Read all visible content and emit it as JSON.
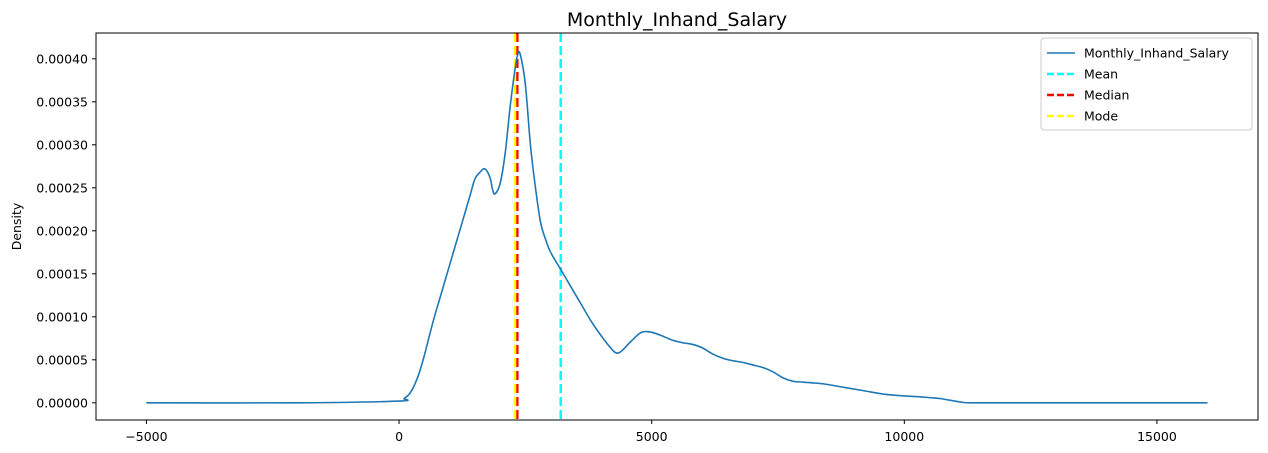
{
  "chart_data": {
    "type": "line",
    "title": "Monthly_Inhand_Salary",
    "xlabel": "",
    "ylabel": "Density",
    "xlim": [
      -5998,
      17000
    ],
    "ylim": [
      -2e-05,
      0.00043
    ],
    "x_ticks": [
      -5000,
      0,
      5000,
      10000,
      15000
    ],
    "x_tick_labels": [
      "−5000",
      "0",
      "5000",
      "10000",
      "15000"
    ],
    "y_ticks": [
      0,
      5e-05,
      0.0001,
      0.00015,
      0.0002,
      0.00025,
      0.0003,
      0.00035,
      0.0004
    ],
    "y_tick_labels": [
      "0.00000",
      "0.00005",
      "0.00010",
      "0.00015",
      "0.00020",
      "0.00025",
      "0.00030",
      "0.00035",
      "0.00040"
    ],
    "grid": false,
    "legend_position": "top-right",
    "series": [
      {
        "name": "Monthly_Inhand_Salary",
        "color": "#1f77b4",
        "x": [
          -5000,
          -2000,
          0,
          100,
          200,
          300,
          400,
          500,
          600,
          700,
          800,
          900,
          1000,
          1100,
          1200,
          1300,
          1400,
          1500,
          1600,
          1700,
          1800,
          1850,
          1900,
          2000,
          2100,
          2200,
          2300,
          2350,
          2400,
          2500,
          2600,
          2700,
          2800,
          2900,
          3000,
          3200,
          3400,
          3600,
          3800,
          4000,
          4200,
          4300,
          4400,
          4600,
          4800,
          5000,
          5200,
          5400,
          5600,
          5800,
          6000,
          6200,
          6400,
          6600,
          6800,
          7000,
          7200,
          7400,
          7600,
          7800,
          8000,
          8400,
          8800,
          9200,
          9600,
          10000,
          10300,
          10500,
          10700,
          10900,
          11100,
          11300,
          12000,
          14000,
          16000
        ],
        "y": [
          0,
          0,
          2e-06,
          5e-06,
          1e-05,
          2e-05,
          3.5e-05,
          5.5e-05,
          7.8e-05,
          0.0001,
          0.00012,
          0.00014,
          0.00016,
          0.00018,
          0.0002,
          0.00022,
          0.00024,
          0.00026,
          0.000268,
          0.000272,
          0.000262,
          0.000248,
          0.000243,
          0.000255,
          0.00029,
          0.000345,
          0.00039,
          0.000405,
          0.000405,
          0.00037,
          0.0003,
          0.00025,
          0.00021,
          0.00019,
          0.000175,
          0.000155,
          0.000135,
          0.000115,
          9.5e-05,
          7.8e-05,
          6.3e-05,
          5.8e-05,
          6e-05,
          7.2e-05,
          8.2e-05,
          8.2e-05,
          7.8e-05,
          7.3e-05,
          7e-05,
          6.8e-05,
          6.4e-05,
          5.7e-05,
          5.2e-05,
          4.9e-05,
          4.7e-05,
          4.4e-05,
          4.1e-05,
          3.6e-05,
          2.9e-05,
          2.5e-05,
          2.4e-05,
          2.2e-05,
          1.8e-05,
          1.4e-05,
          1e-05,
          8e-06,
          7e-06,
          6e-06,
          5e-06,
          3e-06,
          1e-06,
          0,
          0,
          0,
          0
        ]
      }
    ],
    "reference_lines": [
      {
        "name": "Mean",
        "value": 3200,
        "color": "#00ffff",
        "style": "dashed"
      },
      {
        "name": "Median",
        "value": 2340,
        "color": "#ff0000",
        "style": "dashed"
      },
      {
        "name": "Mode",
        "value": 2295,
        "color": "#ffff00",
        "style": "dashed"
      }
    ]
  }
}
